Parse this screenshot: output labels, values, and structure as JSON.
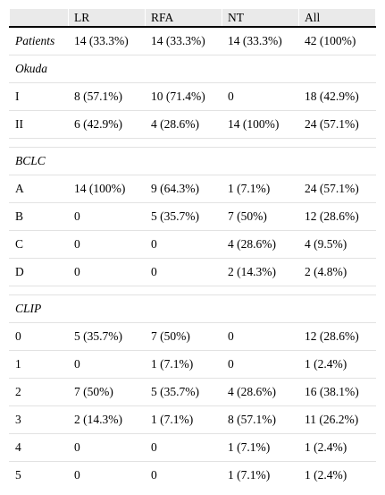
{
  "header": [
    "",
    "LR",
    "RFA",
    "NT",
    "All"
  ],
  "rows": [
    {
      "type": "data",
      "italic_label": true,
      "cells": [
        "Patients",
        "14 (33.3%)",
        "14 (33.3%)",
        "14 (33.3%)",
        "42 (100%)"
      ]
    },
    {
      "type": "section",
      "label": "Okuda"
    },
    {
      "type": "data",
      "cells": [
        "I",
        "8 (57.1%)",
        "10 (71.4%)",
        "0",
        "18 (42.9%)"
      ]
    },
    {
      "type": "data",
      "cells": [
        "II",
        "6 (42.9%)",
        "4 (28.6%)",
        "14 (100%)",
        "24 (57.1%)"
      ]
    },
    {
      "type": "spacer"
    },
    {
      "type": "section",
      "label": "BCLC"
    },
    {
      "type": "data",
      "cells": [
        "A",
        "14 (100%)",
        "9 (64.3%)",
        "1 (7.1%)",
        "24 (57.1%)"
      ]
    },
    {
      "type": "data",
      "cells": [
        "B",
        "0",
        "5 (35.7%)",
        "7 (50%)",
        "12 (28.6%)"
      ]
    },
    {
      "type": "data",
      "cells": [
        "C",
        "0",
        "0",
        "4 (28.6%)",
        "4 (9.5%)"
      ]
    },
    {
      "type": "data",
      "cells": [
        "D",
        "0",
        "0",
        "2 (14.3%)",
        "2 (4.8%)"
      ]
    },
    {
      "type": "spacer"
    },
    {
      "type": "section",
      "label": "CLIP"
    },
    {
      "type": "data",
      "cells": [
        "0",
        "5 (35.7%)",
        "7 (50%)",
        "0",
        "12 (28.6%)"
      ]
    },
    {
      "type": "data",
      "cells": [
        "1",
        "0",
        "1 (7.1%)",
        "0",
        "1 (2.4%)"
      ]
    },
    {
      "type": "data",
      "cells": [
        "2",
        "7 (50%)",
        "5 (35.7%)",
        "4 (28.6%)",
        "16 (38.1%)"
      ]
    },
    {
      "type": "data",
      "cells": [
        "3",
        "2 (14.3%)",
        "1 (7.1%)",
        "8 (57.1%)",
        "11 (26.2%)"
      ]
    },
    {
      "type": "data",
      "cells": [
        "4",
        "0",
        "0",
        "1 (7.1%)",
        "1 (2.4%)"
      ]
    },
    {
      "type": "data",
      "cells": [
        "5",
        "0",
        "0",
        "1 (7.1%)",
        "1 (2.4%)"
      ]
    }
  ]
}
